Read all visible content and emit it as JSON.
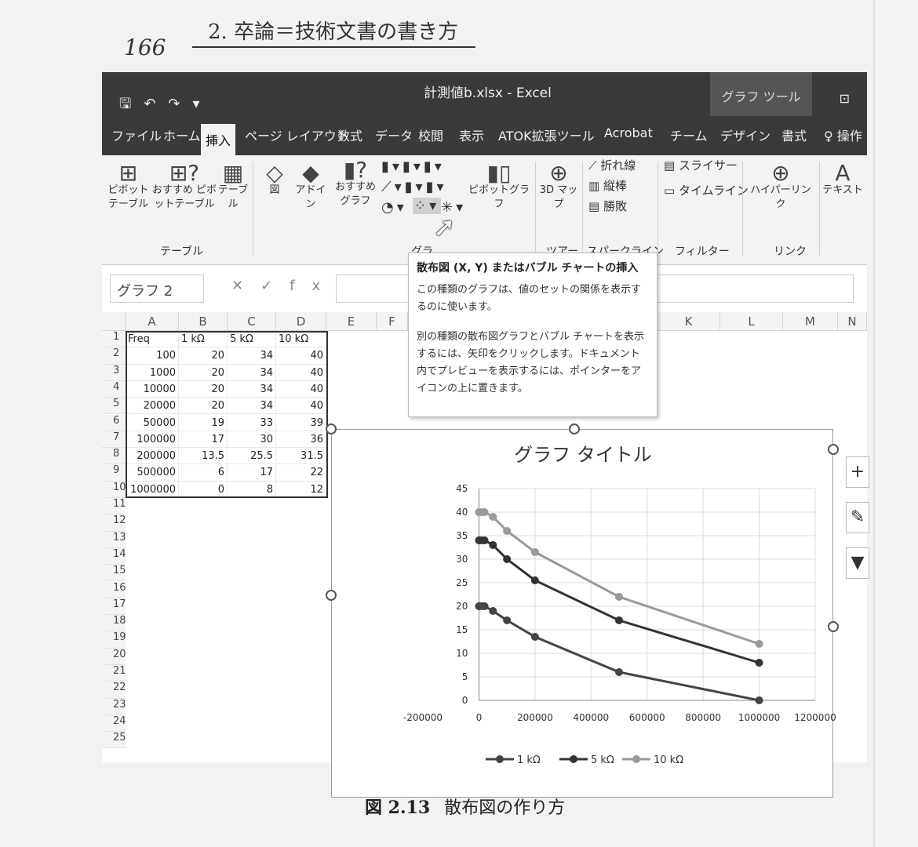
{
  "book": {
    "page_number": "166",
    "chapter_title": "2. 卒論＝技術文書の書き方",
    "figure_number": "図 2.13",
    "figure_caption": "散布図の作り方"
  },
  "window": {
    "title": "計測値b.xlsx - Excel",
    "context_tab_group": "グラフ ツール"
  },
  "tabs": [
    {
      "label": "ファイル"
    },
    {
      "label": "ホーム"
    },
    {
      "label": "挿入",
      "active": true
    },
    {
      "label": "ページ レイアウト"
    },
    {
      "label": "数式"
    },
    {
      "label": "データ"
    },
    {
      "label": "校閲"
    },
    {
      "label": "表示"
    },
    {
      "label": "ATOK拡張ツール"
    },
    {
      "label": "Acrobat"
    },
    {
      "label": "チーム"
    },
    {
      "label": "デザイン"
    },
    {
      "label": "書式"
    },
    {
      "label": "♀ 操作"
    }
  ],
  "ribbon": {
    "pivot_table": "ピボット テーブル",
    "recommended_pivot": "おすすめ ピボットテーブル",
    "table": "テーブル",
    "illustrations": "図",
    "addins": "アドイ ン",
    "recommended_charts": "おすすめ グラフ",
    "pivot_chart": "ピボットグラフ",
    "map_3d": "3D マッ プ",
    "sparkline_line": "折れ線",
    "sparkline_column": "縦棒",
    "sparkline_winloss": "勝敗",
    "slicer": "スライサー",
    "timeline": "タイムライン",
    "hyperlink": "ハイパーリンク",
    "text": "テキスト",
    "group_table": "テーブル",
    "group_chart": "グラ",
    "group_tour": "ツアー",
    "group_sparkline": "スパークライン",
    "group_filter": "フィルター",
    "group_link": "リンク"
  },
  "formula_bar": {
    "name_box": "グラフ 2",
    "fx": "fx"
  },
  "tooltip": {
    "title": "散布図 (X, Y) またはバブル チャートの挿入",
    "para1": "この種類のグラフは、値のセットの関係を表示するのに使います。",
    "para2": "別の種類の散布図グラフとバブル チャートを表示するには、矢印をクリックします。ドキュメント内でプレビューを表示するには、ポインターをアイコンの上に置きます。"
  },
  "columns": [
    "A",
    "B",
    "C",
    "D",
    "E",
    "F",
    "K",
    "L",
    "M",
    "N"
  ],
  "sheet": {
    "headers": [
      "Freq",
      "1 kΩ",
      "5 kΩ",
      "10 kΩ"
    ],
    "rows": [
      [
        "100",
        "20",
        "34",
        "40"
      ],
      [
        "1000",
        "20",
        "34",
        "40"
      ],
      [
        "10000",
        "20",
        "34",
        "40"
      ],
      [
        "20000",
        "20",
        "34",
        "40"
      ],
      [
        "50000",
        "19",
        "33",
        "39"
      ],
      [
        "100000",
        "17",
        "30",
        "36"
      ],
      [
        "200000",
        "13.5",
        "25.5",
        "31.5"
      ],
      [
        "500000",
        "6",
        "17",
        "22"
      ],
      [
        "1000000",
        "0",
        "8",
        "12"
      ]
    ],
    "row_numbers": [
      "1",
      "2",
      "3",
      "4",
      "5",
      "6",
      "7",
      "8",
      "9",
      "10",
      "11",
      "12",
      "13",
      "14",
      "15",
      "16",
      "17",
      "18",
      "19",
      "20",
      "21",
      "22",
      "23",
      "24",
      "25"
    ]
  },
  "chart_data": {
    "type": "scatter",
    "title": "グラフ タイトル",
    "xlabel": "",
    "ylabel": "",
    "xlim": [
      -200000,
      1200000
    ],
    "ylim": [
      0,
      45
    ],
    "x_ticks": [
      "-200000",
      "0",
      "200000",
      "400000",
      "600000",
      "800000",
      "1000000",
      "1200000"
    ],
    "y_ticks": [
      "0",
      "5",
      "10",
      "15",
      "20",
      "25",
      "30",
      "35",
      "40",
      "45"
    ],
    "x": [
      100,
      1000,
      10000,
      20000,
      50000,
      100000,
      200000,
      500000,
      1000000
    ],
    "series": [
      {
        "name": "1 kΩ",
        "values": [
          20,
          20,
          20,
          20,
          19,
          17,
          13.5,
          6,
          0
        ],
        "color": "#444444"
      },
      {
        "name": "5 kΩ",
        "values": [
          34,
          34,
          34,
          34,
          33,
          30,
          25.5,
          17,
          8
        ],
        "color": "#333333"
      },
      {
        "name": "10 kΩ",
        "values": [
          40,
          40,
          40,
          40,
          39,
          36,
          31.5,
          22,
          12
        ],
        "color": "#9a9a9a"
      }
    ],
    "grid": true,
    "legend": "bottom"
  }
}
